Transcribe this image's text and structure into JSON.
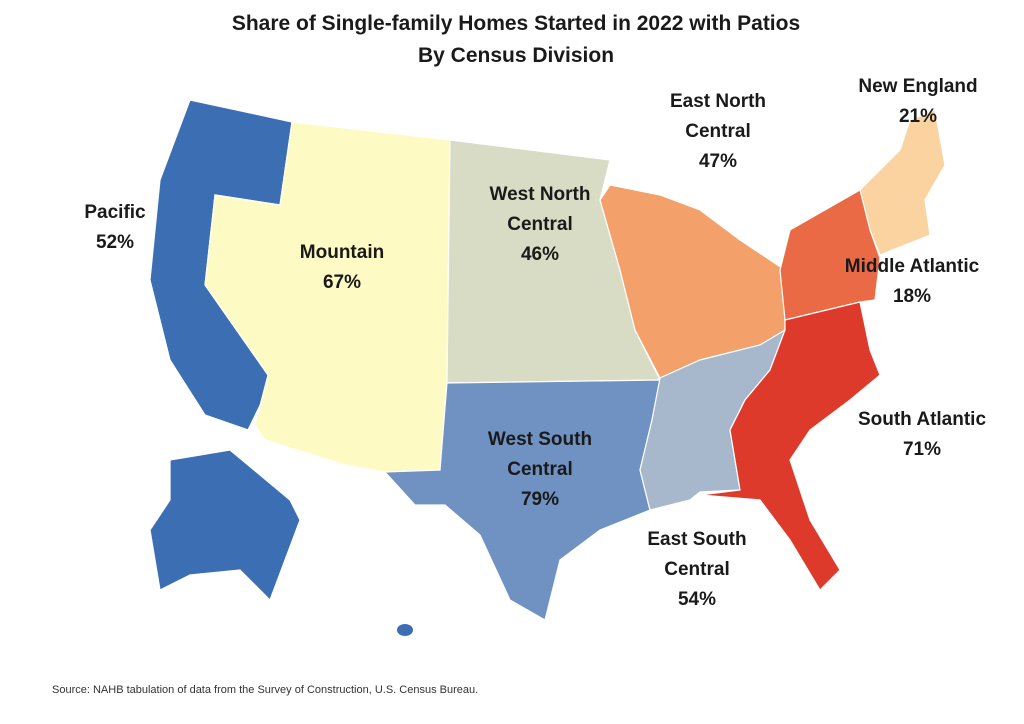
{
  "header": {
    "title": "Share of Single-family Homes Started in 2022 with Patios",
    "subtitle": "By Census Division"
  },
  "regions": [
    {
      "name_lines": [
        "Pacific"
      ],
      "share": "52%",
      "color": "#3c6eb4"
    },
    {
      "name_lines": [
        "Mountain"
      ],
      "share": "67%",
      "color": "#fdfac4"
    },
    {
      "name_lines": [
        "West North",
        "Central"
      ],
      "share": "46%",
      "color": "#d8dcc4"
    },
    {
      "name_lines": [
        "West South",
        "Central"
      ],
      "share": "79%",
      "color": "#6f92c3"
    },
    {
      "name_lines": [
        "East North",
        "Central"
      ],
      "share": "47%",
      "color": "#f4a06a"
    },
    {
      "name_lines": [
        "East South",
        "Central"
      ],
      "share": "54%",
      "color": "#a8b8cc"
    },
    {
      "name_lines": [
        "New England"
      ],
      "share": "21%",
      "color": "#fbd3a0"
    },
    {
      "name_lines": [
        "Middle Atlantic"
      ],
      "share": "18%",
      "color": "#ea6a45"
    },
    {
      "name_lines": [
        "South Atlantic"
      ],
      "share": "71%",
      "color": "#dd3a2c"
    }
  ],
  "source": "Source: NAHB tabulation of data from the Survey of Construction, U.S. Census Bureau."
}
